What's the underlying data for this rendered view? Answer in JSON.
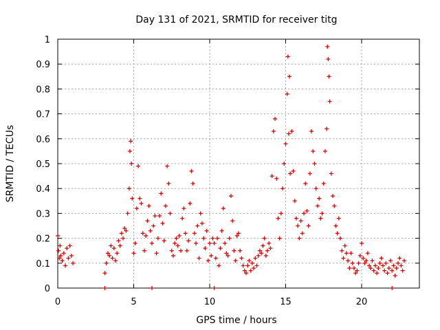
{
  "chart_data": {
    "type": "scatter",
    "title": "Day 131 of 2021, SRMTID for receiver titg",
    "xlabel": "GPS time / hours",
    "ylabel": "SRMTID / TECUs",
    "xlim": [
      0,
      23.8
    ],
    "ylim": [
      0,
      1
    ],
    "xticks": [
      0,
      5,
      10,
      15,
      20
    ],
    "xtick_labels": [
      "0",
      "5",
      "10",
      "15",
      "20"
    ],
    "yticks": [
      0,
      0.1,
      0.2,
      0.3,
      0.4,
      0.5,
      0.6,
      0.7,
      0.8,
      0.9,
      1
    ],
    "ytick_labels": [
      "0",
      "0.1",
      "0.2",
      "0.3",
      "0.4",
      "0.5",
      "0.6",
      "0.7",
      "0.8",
      "0.9",
      "1"
    ],
    "grid": true,
    "marker_color": "#e00000",
    "series": [
      {
        "name": "SRMTID",
        "marker": "plus",
        "x": [
          0.0,
          0.05,
          0.1,
          0.15,
          0.2,
          0.3,
          0.4,
          0.5,
          0.6,
          0.7,
          0.8,
          0.9,
          1.0,
          3.1,
          3.2,
          3.3,
          3.4,
          3.5,
          3.6,
          3.7,
          3.8,
          3.9,
          4.0,
          4.1,
          4.2,
          4.3,
          4.4,
          4.5,
          4.6,
          4.7,
          4.75,
          4.8,
          4.85,
          4.9,
          5.0,
          5.1,
          5.2,
          5.3,
          5.4,
          5.5,
          5.6,
          5.7,
          5.8,
          5.9,
          6.0,
          6.1,
          6.2,
          6.3,
          6.4,
          6.5,
          6.6,
          6.7,
          6.8,
          6.9,
          7.0,
          7.1,
          7.2,
          7.3,
          7.4,
          7.5,
          7.6,
          7.7,
          7.8,
          7.9,
          8.0,
          8.1,
          8.2,
          8.3,
          8.4,
          8.5,
          8.6,
          8.7,
          8.8,
          8.9,
          9.0,
          9.1,
          9.2,
          9.3,
          9.4,
          9.5,
          9.6,
          9.7,
          9.8,
          9.9,
          10.0,
          10.1,
          10.2,
          10.3,
          10.4,
          10.5,
          10.6,
          10.7,
          10.8,
          10.9,
          11.0,
          11.1,
          11.2,
          11.3,
          11.4,
          11.5,
          11.6,
          11.7,
          11.8,
          11.9,
          12.0,
          12.1,
          12.2,
          12.3,
          12.4,
          12.5,
          12.6,
          12.7,
          12.8,
          12.9,
          13.0,
          13.1,
          13.2,
          13.3,
          13.4,
          13.5,
          13.6,
          13.7,
          13.8,
          13.9,
          14.0,
          14.1,
          14.2,
          14.3,
          14.4,
          14.5,
          14.6,
          14.7,
          14.8,
          14.9,
          15.0,
          15.1,
          15.15,
          15.2,
          15.25,
          15.3,
          15.4,
          15.5,
          15.6,
          15.7,
          15.8,
          15.9,
          16.0,
          16.1,
          16.2,
          16.3,
          16.4,
          16.5,
          16.6,
          16.7,
          16.8,
          16.9,
          17.0,
          17.1,
          17.2,
          17.3,
          17.4,
          17.5,
          17.6,
          17.7,
          17.75,
          17.8,
          17.85,
          17.9,
          18.0,
          18.1,
          18.2,
          18.3,
          18.4,
          18.5,
          18.6,
          18.7,
          18.8,
          18.9,
          19.0,
          19.1,
          19.2,
          19.3,
          19.4,
          19.5,
          19.6,
          19.7,
          19.8,
          19.9,
          20.0,
          20.1,
          20.2,
          20.3,
          20.4,
          20.5,
          20.6,
          20.7,
          20.8,
          20.9,
          21.0,
          21.1,
          21.2,
          21.3,
          21.4,
          21.5,
          21.6,
          21.7,
          21.8,
          21.9,
          22.0,
          22.1,
          22.2,
          22.3,
          22.4,
          22.5,
          22.6,
          22.7,
          22.8,
          3.1,
          6.2,
          10.3,
          22.0
        ],
        "y": [
          0.21,
          0.15,
          0.12,
          0.17,
          0.13,
          0.11,
          0.14,
          0.09,
          0.16,
          0.12,
          0.17,
          0.13,
          0.1,
          0.06,
          0.1,
          0.14,
          0.13,
          0.17,
          0.12,
          0.16,
          0.11,
          0.14,
          0.19,
          0.17,
          0.22,
          0.2,
          0.24,
          0.23,
          0.3,
          0.4,
          0.55,
          0.59,
          0.5,
          0.36,
          0.14,
          0.18,
          0.32,
          0.49,
          0.36,
          0.34,
          0.22,
          0.15,
          0.21,
          0.27,
          0.33,
          0.23,
          0.18,
          0.25,
          0.29,
          0.14,
          0.2,
          0.29,
          0.38,
          0.26,
          0.19,
          0.33,
          0.49,
          0.42,
          0.3,
          0.15,
          0.13,
          0.18,
          0.2,
          0.17,
          0.21,
          0.15,
          0.28,
          0.32,
          0.22,
          0.15,
          0.19,
          0.34,
          0.47,
          0.42,
          0.22,
          0.18,
          0.25,
          0.12,
          0.3,
          0.26,
          0.2,
          0.16,
          0.23,
          0.11,
          0.18,
          0.13,
          0.2,
          0.18,
          0.12,
          0.2,
          0.09,
          0.16,
          0.23,
          0.32,
          0.18,
          0.14,
          0.13,
          0.2,
          0.37,
          0.27,
          0.15,
          0.11,
          0.21,
          0.22,
          0.15,
          0.12,
          0.09,
          0.07,
          0.06,
          0.09,
          0.11,
          0.07,
          0.1,
          0.08,
          0.12,
          0.09,
          0.13,
          0.15,
          0.14,
          0.17,
          0.2,
          0.13,
          0.15,
          0.18,
          0.16,
          0.45,
          0.63,
          0.68,
          0.44,
          0.28,
          0.2,
          0.3,
          0.4,
          0.5,
          0.58,
          0.78,
          0.93,
          0.62,
          0.85,
          0.46,
          0.63,
          0.47,
          0.35,
          0.28,
          0.25,
          0.2,
          0.27,
          0.22,
          0.3,
          0.42,
          0.31,
          0.25,
          0.46,
          0.63,
          0.55,
          0.5,
          0.4,
          0.33,
          0.36,
          0.28,
          0.3,
          0.42,
          0.55,
          0.64,
          0.97,
          0.92,
          0.85,
          0.75,
          0.46,
          0.37,
          0.33,
          0.25,
          0.22,
          0.28,
          0.2,
          0.15,
          0.12,
          0.17,
          0.14,
          0.11,
          0.08,
          0.14,
          0.1,
          0.08,
          0.06,
          0.07,
          0.1,
          0.13,
          0.18,
          0.12,
          0.1,
          0.11,
          0.14,
          0.09,
          0.08,
          0.11,
          0.07,
          0.09,
          0.06,
          0.08,
          0.1,
          0.12,
          0.09,
          0.07,
          0.1,
          0.06,
          0.08,
          0.11,
          0.07,
          0.09,
          0.05,
          0.08,
          0.1,
          0.12,
          0.09,
          0.07,
          0.11,
          0.0,
          0.0,
          0.0,
          0.0
        ]
      }
    ]
  }
}
